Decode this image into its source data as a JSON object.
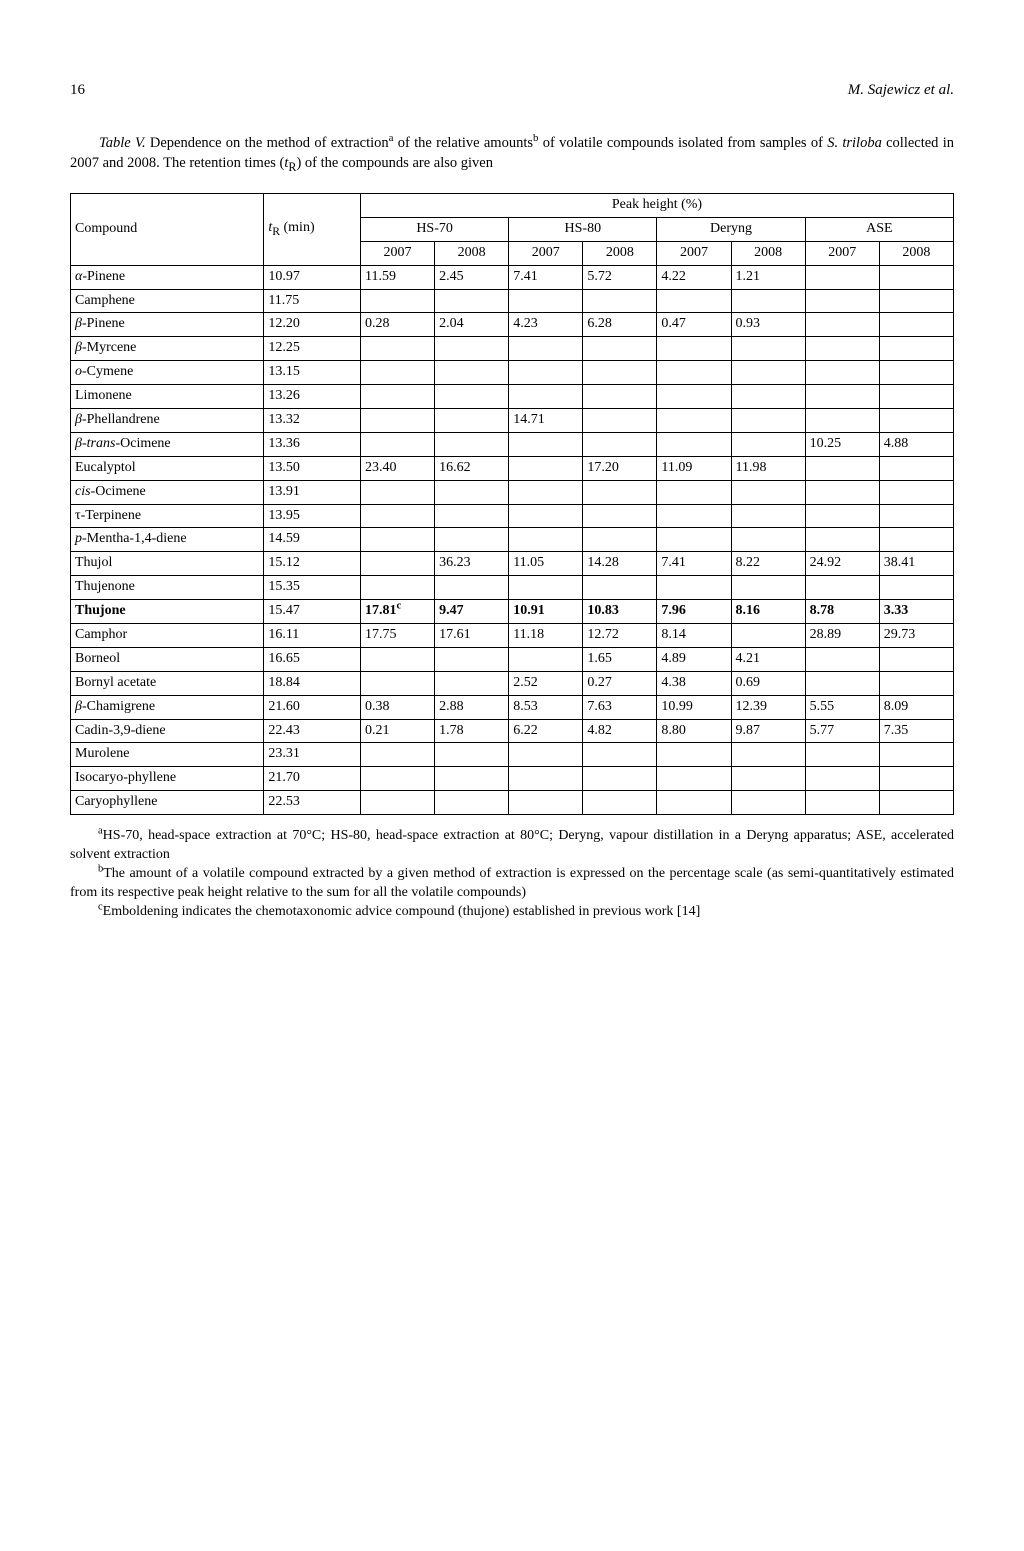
{
  "header": {
    "page_number": "16",
    "running_head": "M. Sajewicz et al."
  },
  "caption": {
    "label": "Table V.",
    "text_a": " Dependence on the method of extraction",
    "sup_a": "a",
    "text_b": " of the relative amounts",
    "sup_b": "b",
    "text_c": " of volatile compounds isolated from samples of ",
    "italic_species": "S. triloba",
    "text_d": " collected in 2007 and 2008. The retention times (",
    "italic_tr": "t",
    "sub_R": "R",
    "text_e": ") of the compounds are also given"
  },
  "table": {
    "head": {
      "compound": "Compound",
      "tr_label_pre": "t",
      "tr_label_sub": "R",
      "tr_label_post": " (min)",
      "peak_height": "Peak height (%)",
      "methods": [
        "HS-70",
        "HS-80",
        "Deryng",
        "ASE"
      ],
      "years": [
        "2007",
        "2008",
        "2007",
        "2008",
        "2007",
        "2008",
        "2007",
        "2008"
      ]
    },
    "rows": [
      {
        "name_html": "<span class='italic'>α</span>-Pinene",
        "tr": "10.97",
        "v": [
          "11.59",
          "2.45",
          "7.41",
          "5.72",
          "4.22",
          "1.21",
          "",
          ""
        ]
      },
      {
        "name_html": "Camphene",
        "tr": "11.75",
        "v": [
          "",
          "",
          "",
          "",
          "",
          "",
          "",
          ""
        ]
      },
      {
        "name_html": "<span class='italic'>β</span>-Pinene",
        "tr": "12.20",
        "v": [
          "0.28",
          "2.04",
          "4.23",
          "6.28",
          "0.47",
          "0.93",
          "",
          ""
        ]
      },
      {
        "name_html": "<span class='italic'>β</span>-Myrcene",
        "tr": "12.25",
        "v": [
          "",
          "",
          "",
          "",
          "",
          "",
          "",
          ""
        ]
      },
      {
        "name_html": "<span class='italic'>o</span>-Cymene",
        "tr": "13.15",
        "v": [
          "",
          "",
          "",
          "",
          "",
          "",
          "",
          ""
        ]
      },
      {
        "name_html": "Limonene",
        "tr": "13.26",
        "v": [
          "",
          "",
          "",
          "",
          "",
          "",
          "",
          ""
        ]
      },
      {
        "name_html": "<span class='italic'>β</span>-Phellandrene",
        "tr": "13.32",
        "v": [
          "",
          "",
          "14.71",
          "",
          "",
          "",
          "",
          ""
        ]
      },
      {
        "name_html": "<span class='italic'>β</span>-<span class='italic'>trans</span>-Ocimene",
        "tr": "13.36",
        "v": [
          "",
          "",
          "",
          "",
          "",
          "",
          "10.25",
          "4.88"
        ]
      },
      {
        "name_html": "Eucalyptol",
        "tr": "13.50",
        "v": [
          "23.40",
          "16.62",
          "",
          "17.20",
          "11.09",
          "11.98",
          "",
          ""
        ]
      },
      {
        "name_html": "<span class='italic'>cis</span>-Ocimene",
        "tr": "13.91",
        "v": [
          "",
          "",
          "",
          "",
          "",
          "",
          "",
          ""
        ]
      },
      {
        "name_html": "τ-Terpinene",
        "tr": "13.95",
        "v": [
          "",
          "",
          "",
          "",
          "",
          "",
          "",
          ""
        ]
      },
      {
        "name_html": "<span class='italic'>p</span>-Mentha-1,4-diene",
        "tr": "14.59",
        "v": [
          "",
          "",
          "",
          "",
          "",
          "",
          "",
          ""
        ]
      },
      {
        "name_html": "Thujol",
        "tr": "15.12",
        "v": [
          "",
          "36.23",
          "11.05",
          "14.28",
          "7.41",
          "8.22",
          "24.92",
          "38.41"
        ]
      },
      {
        "name_html": "Thujenone",
        "tr": "15.35",
        "v": [
          "",
          "",
          "",
          "",
          "",
          "",
          "",
          ""
        ]
      },
      {
        "name_html": "Thujone",
        "tr": "15.47",
        "bold": true,
        "v": [
          "17.81<sup>c</sup>",
          "9.47",
          "10.91",
          "10.83",
          "7.96",
          "8.16",
          "8.78",
          "3.33"
        ]
      },
      {
        "name_html": "Camphor",
        "tr": "16.11",
        "v": [
          "17.75",
          "17.61",
          "11.18",
          "12.72",
          "8.14",
          "",
          "28.89",
          "29.73"
        ]
      },
      {
        "name_html": "Borneol",
        "tr": "16.65",
        "v": [
          "",
          "",
          "",
          "1.65",
          "4.89",
          "4.21",
          "",
          ""
        ]
      },
      {
        "name_html": "Bornyl acetate",
        "tr": "18.84",
        "v": [
          "",
          "",
          "2.52",
          "0.27",
          "4.38",
          "0.69",
          "",
          ""
        ]
      },
      {
        "name_html": "<span class='italic'>β</span>-Chamigrene",
        "tr": "21.60",
        "v": [
          "0.38",
          "2.88",
          "8.53",
          "7.63",
          "10.99",
          "12.39",
          "5.55",
          "8.09"
        ]
      },
      {
        "name_html": "Cadin-3,9-diene",
        "tr": "22.43",
        "v": [
          "0.21",
          "1.78",
          "6.22",
          "4.82",
          "8.80",
          "9.87",
          "5.77",
          "7.35"
        ]
      },
      {
        "name_html": "Murolene",
        "tr": "23.31",
        "v": [
          "",
          "",
          "",
          "",
          "",
          "",
          "",
          ""
        ]
      },
      {
        "name_html": "Isocaryo-phyllene",
        "tr": "21.70",
        "v": [
          "",
          "",
          "",
          "",
          "",
          "",
          "",
          ""
        ]
      },
      {
        "name_html": "Caryophyllene",
        "tr": "22.53",
        "v": [
          "",
          "",
          "",
          "",
          "",
          "",
          "",
          ""
        ]
      }
    ]
  },
  "footnotes": {
    "a_sup": "a",
    "a": "HS-70, head-space extraction at 70°C; HS-80, head-space extraction at 80°C; Deryng, vapour distillation in a Deryng apparatus; ASE, accelerated solvent extraction",
    "b_sup": "b",
    "b": "The amount of a volatile compound extracted by a given method of extraction is expressed on the percentage scale (as semi-quantitatively estimated from its respective peak height relative to the sum for all the volatile compounds)",
    "c_sup": "c",
    "c": "Emboldening indicates the chemotaxonomic advice compound (thujone) established in previous work [14]"
  }
}
